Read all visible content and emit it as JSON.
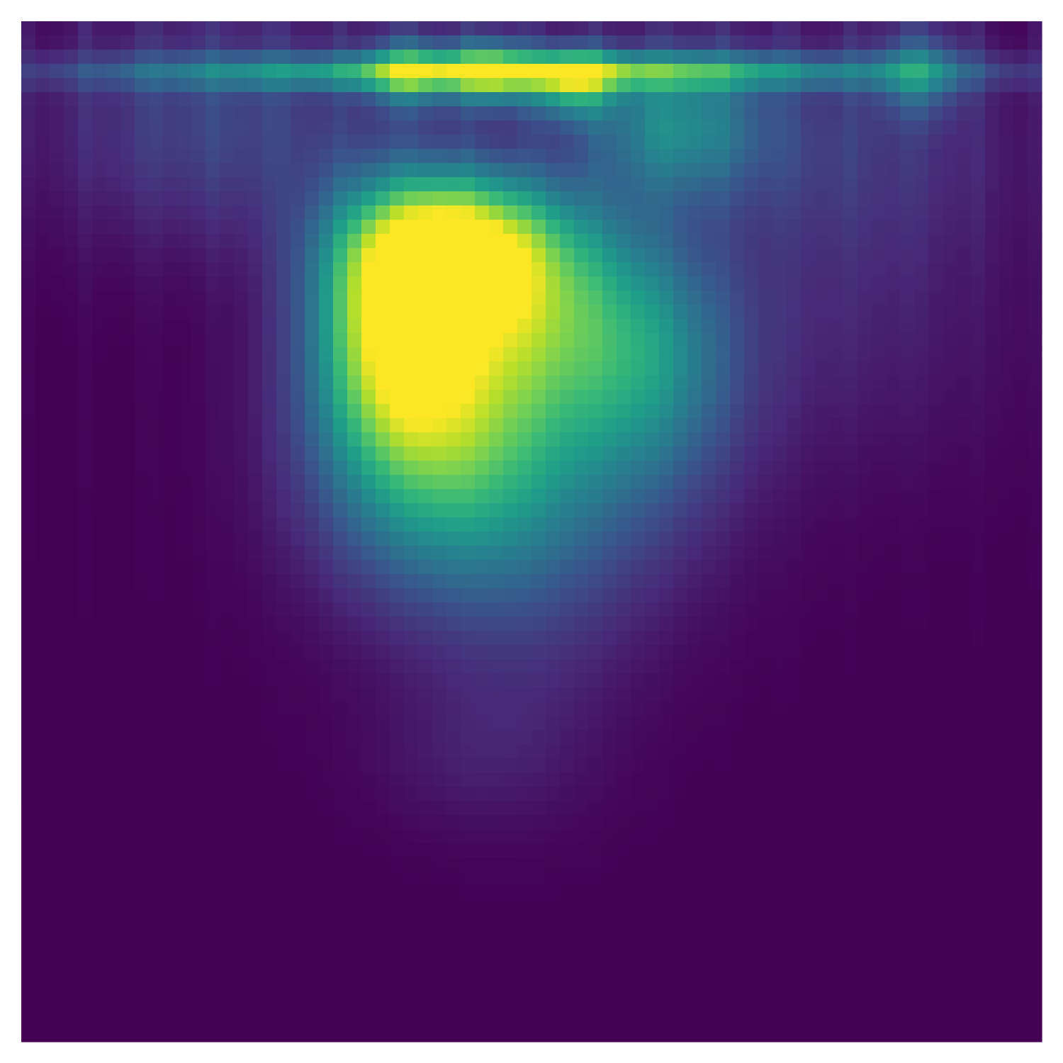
{
  "chart_data": {
    "type": "heatmap",
    "colormap": "viridis",
    "colormap_stops": [
      "#440154",
      "#482878",
      "#3e4989",
      "#31688e",
      "#26828e",
      "#1f9e89",
      "#35b779",
      "#6ece58",
      "#b5de2b",
      "#fde725"
    ],
    "axes_visible": false,
    "grid": false,
    "legend": "none",
    "title": "",
    "xlabel": "",
    "ylabel": "",
    "value_range": [
      0,
      1
    ],
    "background_value": 0.0,
    "blobs": [
      {
        "x": 0.5,
        "y": 0.05,
        "sx": 0.28,
        "sy": 0.012,
        "v": 0.55
      },
      {
        "x": 0.36,
        "y": 0.3,
        "sx": 0.05,
        "sy": 0.08,
        "v": 0.55
      },
      {
        "x": 0.42,
        "y": 0.22,
        "sx": 0.07,
        "sy": 0.05,
        "v": 0.75
      },
      {
        "x": 0.5,
        "y": 0.28,
        "sx": 0.1,
        "sy": 0.08,
        "v": 0.55
      },
      {
        "x": 0.4,
        "y": 0.4,
        "sx": 0.08,
        "sy": 0.1,
        "v": 0.5
      },
      {
        "x": 0.5,
        "y": 0.45,
        "sx": 0.11,
        "sy": 0.1,
        "v": 0.3
      },
      {
        "x": 0.62,
        "y": 0.35,
        "sx": 0.06,
        "sy": 0.08,
        "v": 0.25
      },
      {
        "x": 0.38,
        "y": 0.05,
        "sx": 0.03,
        "sy": 0.025,
        "v": 0.45
      },
      {
        "x": 0.46,
        "y": 0.05,
        "sx": 0.03,
        "sy": 0.025,
        "v": 0.55
      },
      {
        "x": 0.54,
        "y": 0.06,
        "sx": 0.03,
        "sy": 0.025,
        "v": 0.55
      },
      {
        "x": 0.64,
        "y": 0.1,
        "sx": 0.06,
        "sy": 0.05,
        "v": 0.4
      },
      {
        "x": 0.88,
        "y": 0.05,
        "sx": 0.03,
        "sy": 0.03,
        "v": 0.3
      },
      {
        "x": 0.2,
        "y": 0.1,
        "sx": 0.12,
        "sy": 0.08,
        "v": 0.2
      },
      {
        "x": 0.8,
        "y": 0.12,
        "sx": 0.12,
        "sy": 0.08,
        "v": 0.15
      },
      {
        "x": 0.8,
        "y": 0.3,
        "sx": 0.12,
        "sy": 0.1,
        "v": 0.08
      },
      {
        "x": 0.5,
        "y": 0.62,
        "sx": 0.07,
        "sy": 0.1,
        "v": 0.06
      },
      {
        "x": 0.44,
        "y": 0.72,
        "sx": 0.07,
        "sy": 0.05,
        "v": 0.06
      }
    ]
  }
}
